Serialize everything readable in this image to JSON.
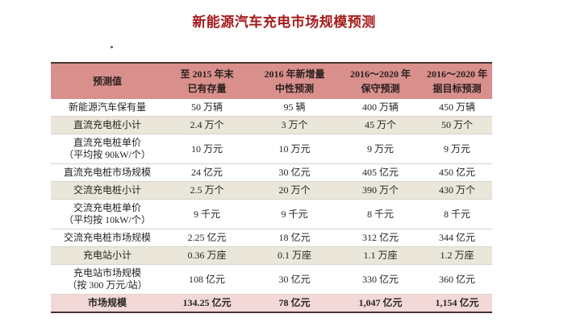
{
  "page": {
    "title": "新能源汽车充电市场规模预测"
  },
  "colors": {
    "title_text": "#a51c1c",
    "header_bg": "#d9908c",
    "header_text": "#2b1f1f",
    "subtotal_row_bg": "#eae6d9",
    "total_row_bg": "#f2d9d7",
    "table_border": "#463434",
    "row_divider": "#d6d3cd",
    "body_text": "#262424"
  },
  "table": {
    "header": [
      {
        "line1": "预测值",
        "line2": ""
      },
      {
        "line1": "至 2015 年末",
        "line2": "已有存量"
      },
      {
        "line1": "2016 年新增量",
        "line2": "中性预测"
      },
      {
        "line1": "2016～2020 年",
        "line2": "保守预测"
      },
      {
        "line1": "2016～2020 年",
        "line2": "据目标预测"
      }
    ],
    "rows": [
      {
        "label": "新能源汽车保有量",
        "label2": "",
        "style": "plain",
        "values": [
          "50 万辆",
          "95 辆",
          "400 万辆",
          "450 万辆"
        ]
      },
      {
        "label": "直流充电桩小计",
        "label2": "",
        "style": "subtotal",
        "values": [
          "2.4 万个",
          "3 万个",
          "45 万个",
          "50 万个"
        ]
      },
      {
        "label": "直流充电桩单价",
        "label2": "（平均按 90kW/个）",
        "style": "plain",
        "values": [
          "10 万元",
          "10 万元",
          "9 万元",
          "9 万元"
        ]
      },
      {
        "label": "直流充电桩市场规模",
        "label2": "",
        "style": "plain",
        "values": [
          "24 亿元",
          "30 亿元",
          "405 亿元",
          "450 亿元"
        ]
      },
      {
        "label": "交流充电桩小计",
        "label2": "",
        "style": "subtotal",
        "values": [
          "2.5 万个",
          "20 万个",
          "390 万个",
          "430 万个"
        ]
      },
      {
        "label": "交流充电桩单价",
        "label2": "（平均按 10kW/个）",
        "style": "plain",
        "values": [
          "9 千元",
          "9 千元",
          "8 千元",
          "8 千元"
        ]
      },
      {
        "label": "交流充电桩市场规模",
        "label2": "",
        "style": "plain",
        "values": [
          "2.25 亿元",
          "18 亿元",
          "312 亿元",
          "344 亿元"
        ]
      },
      {
        "label": "充电站小计",
        "label2": "",
        "style": "subtotal",
        "values": [
          "0.36 万座",
          "0.1 万座",
          "1.1 万座",
          "1.2 万座"
        ]
      },
      {
        "label": "充电站市场规模",
        "label2": "（按 300 万元/站）",
        "style": "plain",
        "values": [
          "108 亿元",
          "30 亿元",
          "330 亿元",
          "360 亿元"
        ]
      },
      {
        "label": "市场规模",
        "label2": "",
        "style": "total",
        "values": [
          "134.25 亿元",
          "78 亿元",
          "1,047 亿元",
          "1,154 亿元"
        ]
      }
    ]
  }
}
